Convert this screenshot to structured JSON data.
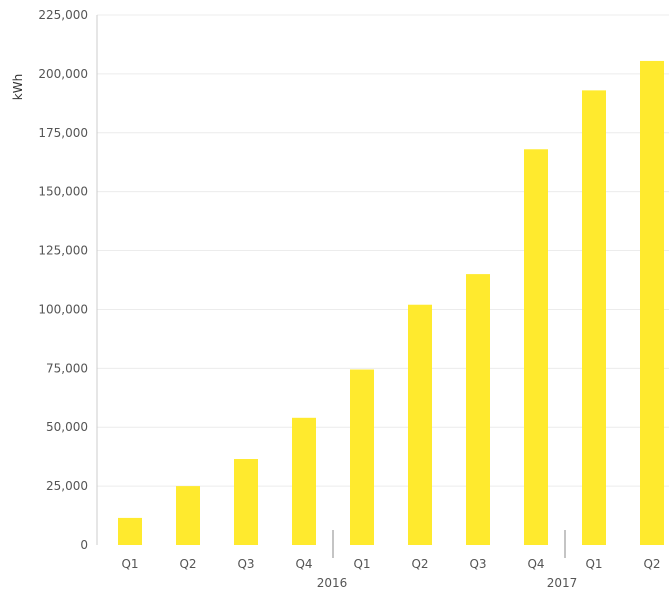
{
  "chart_data": {
    "type": "bar",
    "title": "",
    "xlabel": "",
    "ylabel": "kWh",
    "ylim": [
      0,
      225000
    ],
    "yticks": [
      0,
      25000,
      50000,
      75000,
      100000,
      125000,
      150000,
      175000,
      200000,
      225000
    ],
    "ytick_labels": [
      "0",
      "25,000",
      "50,000",
      "75,000",
      "100,000",
      "125,000",
      "150,000",
      "175,000",
      "200,000",
      "225,000"
    ],
    "categories": [
      "Q1",
      "Q2",
      "Q3",
      "Q4",
      "Q1",
      "Q2",
      "Q3",
      "Q4",
      "Q1",
      "Q2"
    ],
    "groups": [
      {
        "label": "2016",
        "start": 0,
        "end": 3
      },
      {
        "label": "2016",
        "start": 4,
        "end": 7
      },
      {
        "label": "2017",
        "start": 8,
        "end": 9
      }
    ],
    "group_labels_shown": [
      "",
      "2016",
      "2017"
    ],
    "values": [
      11500,
      25000,
      36500,
      54000,
      74500,
      102000,
      115000,
      168000,
      193000,
      205500
    ],
    "bar_color": "#FFEA2E",
    "gridlines": true,
    "grid_color": "#ececec",
    "legend": "none"
  }
}
